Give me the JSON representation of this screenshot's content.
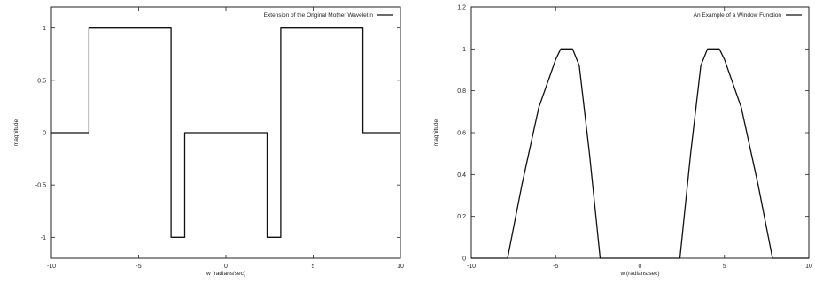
{
  "chart_data": [
    {
      "type": "line",
      "xlabel": "w (radians/sec)",
      "ylabel": "magnitude",
      "xlim": [
        -10,
        10
      ],
      "ylim": [
        -1.2,
        1.2
      ],
      "x_ticks": [
        -10,
        -5,
        0,
        5,
        10
      ],
      "y_ticks": [
        -1,
        -0.5,
        0,
        0.5,
        1
      ],
      "grid": false,
      "legend_position": "top-right",
      "series": [
        {
          "name": "Extension of the Original Mother Wavelet n",
          "color": "#111111",
          "x": [
            -10,
            -7.85,
            -7.85,
            -3.14,
            -3.14,
            -2.36,
            -2.36,
            -2.36,
            2.36,
            2.36,
            3.14,
            3.14,
            7.85,
            7.85,
            10
          ],
          "y": [
            0,
            0,
            1,
            1,
            -1,
            -1,
            0,
            0,
            0,
            -1,
            -1,
            1,
            1,
            0,
            0
          ]
        }
      ]
    },
    {
      "type": "line",
      "xlabel": "w (radians/sec)",
      "ylabel": "magnitude",
      "xlim": [
        -10,
        10
      ],
      "ylim": [
        0,
        1.2
      ],
      "x_ticks": [
        -10,
        -5,
        0,
        5,
        10
      ],
      "y_ticks": [
        0,
        0.2,
        0.4,
        0.6,
        0.8,
        1,
        1.2
      ],
      "grid": false,
      "legend_position": "top-right",
      "series": [
        {
          "name": "An Example of a Window Function",
          "color": "#111111",
          "x": [
            -10,
            -7.85,
            -7.0,
            -6.0,
            -5.0,
            -4.7,
            -4.0,
            -3.6,
            -3.0,
            -2.36,
            2.36,
            3.0,
            3.6,
            4.0,
            4.7,
            5.0,
            6.0,
            7.0,
            7.85,
            10
          ],
          "y": [
            0,
            0,
            0.35,
            0.72,
            0.95,
            1.0,
            1.0,
            0.92,
            0.5,
            0,
            0,
            0.5,
            0.92,
            1.0,
            1.0,
            0.95,
            0.72,
            0.35,
            0,
            0
          ]
        }
      ]
    }
  ]
}
